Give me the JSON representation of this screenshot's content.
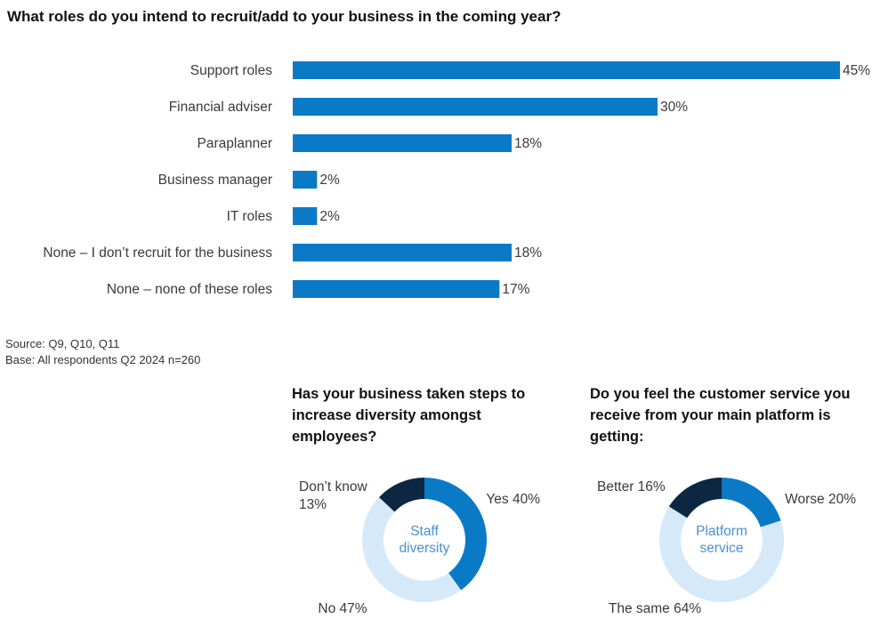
{
  "title": "What roles do you intend to recruit/add to your business in the coming year?",
  "source": "Source: Q9, Q10, Q11",
  "base": "Base: All respondents Q2 2024 n=260",
  "colors": {
    "bar": "#0a7ac7",
    "dark": "#0d2642",
    "blue": "#0a7ac7",
    "light": "#d6e9f8",
    "center_text": "#4a90d2"
  },
  "chart_data": [
    {
      "type": "bar",
      "orientation": "horizontal",
      "categories": [
        "Support roles",
        "Financial adviser",
        "Paraplanner",
        "Business manager",
        "IT roles",
        "None – I don’t recruit for the business",
        "None – none of these roles"
      ],
      "values": [
        45,
        30,
        18,
        2,
        2,
        18,
        17
      ],
      "labels": [
        "45%",
        "30%",
        "18%",
        "2%",
        "2%",
        "18%",
        "17%"
      ],
      "xlim": [
        0,
        45
      ]
    },
    {
      "type": "pie",
      "style": "donut",
      "question": "Has your business taken steps to increase diversity amongst employees?",
      "center_label": [
        "Staff",
        "diversity"
      ],
      "categories": [
        "Yes",
        "No",
        "Don’t know"
      ],
      "values": [
        40,
        47,
        13
      ],
      "labels": [
        [
          "Yes 40%"
        ],
        [
          "No 47%"
        ],
        [
          "Don’t know",
          "13%"
        ]
      ]
    },
    {
      "type": "pie",
      "style": "donut",
      "question": "Do you feel the customer service you receive from your main platform is getting:",
      "center_label": [
        "Platform",
        "service"
      ],
      "categories": [
        "Worse",
        "The same",
        "Better"
      ],
      "values": [
        20,
        64,
        16
      ],
      "labels": [
        [
          "Worse 20%"
        ],
        [
          "The same 64%"
        ],
        [
          "Better 16%"
        ]
      ]
    }
  ]
}
